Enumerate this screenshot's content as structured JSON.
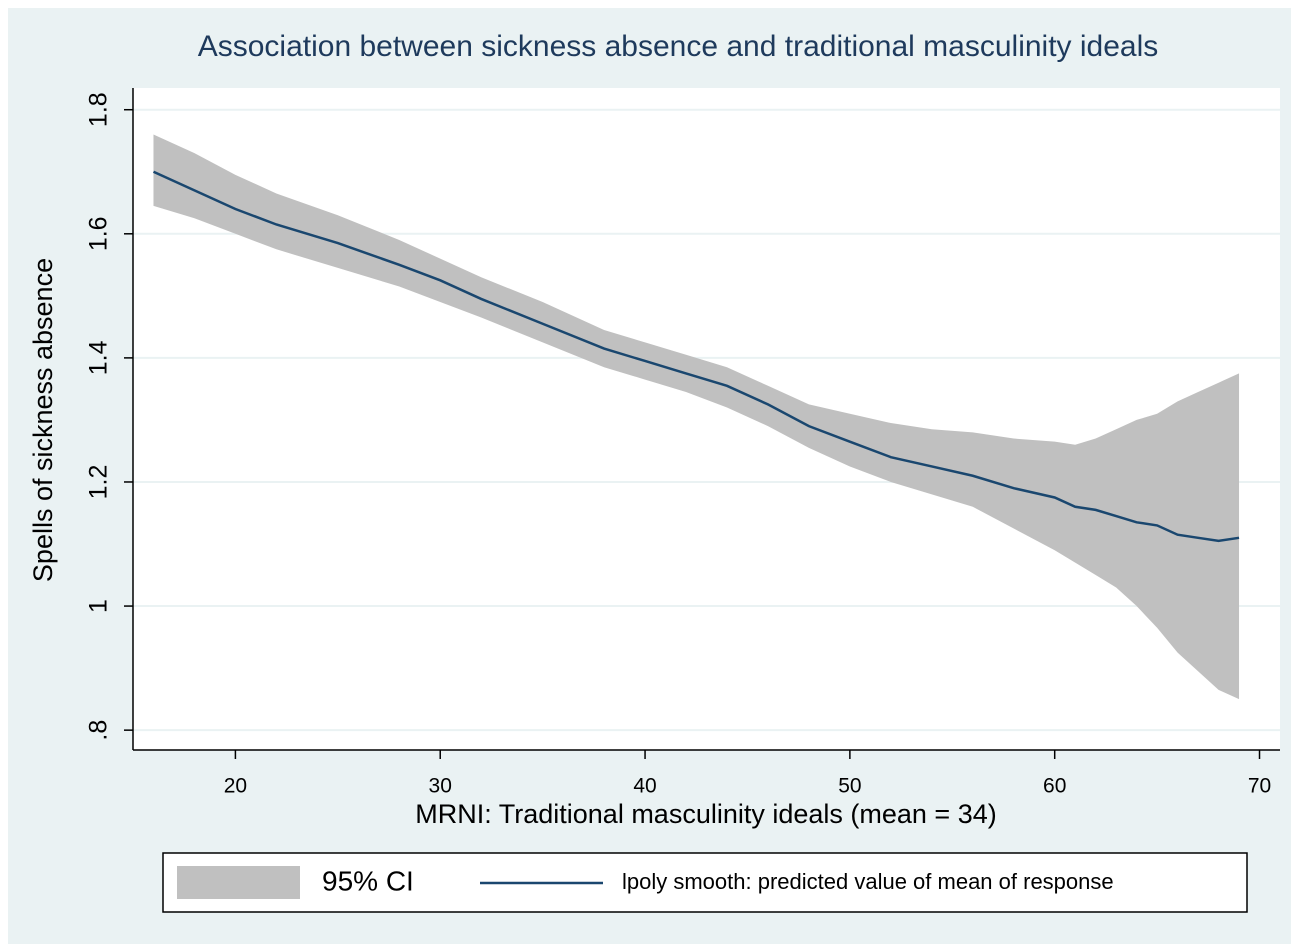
{
  "chart_data": {
    "type": "line",
    "title": "Association between sickness absence and traditional masculinity ideals",
    "x_label": "MRNI: Traditional masculinity ideals (mean = 34)",
    "y_label": "Spells of sickness absence",
    "x": [
      16,
      18,
      20,
      22,
      25,
      28,
      30,
      32,
      35,
      38,
      40,
      42,
      44,
      46,
      48,
      50,
      52,
      54,
      56,
      58,
      60,
      61,
      62,
      63,
      64,
      65,
      66,
      67,
      68,
      69
    ],
    "series": [
      {
        "name": "95% CI",
        "type": "area",
        "color": "#c0c0c0",
        "high": [
          1.76,
          1.73,
          1.695,
          1.665,
          1.63,
          1.59,
          1.56,
          1.53,
          1.49,
          1.445,
          1.425,
          1.405,
          1.385,
          1.355,
          1.325,
          1.31,
          1.295,
          1.285,
          1.28,
          1.27,
          1.265,
          1.26,
          1.27,
          1.285,
          1.3,
          1.31,
          1.33,
          1.345,
          1.36,
          1.375
        ],
        "low": [
          1.645,
          1.625,
          1.6,
          1.575,
          1.545,
          1.515,
          1.49,
          1.465,
          1.425,
          1.385,
          1.365,
          1.345,
          1.32,
          1.29,
          1.255,
          1.225,
          1.2,
          1.18,
          1.16,
          1.125,
          1.09,
          1.07,
          1.05,
          1.03,
          1.0,
          0.965,
          0.925,
          0.895,
          0.865,
          0.85
        ]
      },
      {
        "name": "lpoly smooth: predicted value of mean of response",
        "type": "line",
        "color": "#1a476f",
        "values": [
          1.7,
          1.67,
          1.64,
          1.615,
          1.585,
          1.55,
          1.525,
          1.495,
          1.455,
          1.415,
          1.395,
          1.375,
          1.355,
          1.325,
          1.29,
          1.265,
          1.24,
          1.225,
          1.21,
          1.19,
          1.175,
          1.16,
          1.155,
          1.145,
          1.135,
          1.13,
          1.115,
          1.11,
          1.105,
          1.11
        ]
      }
    ],
    "xlim": [
      15,
      71
    ],
    "ylim": [
      0.768,
      1.835
    ],
    "xticks": [
      20,
      30,
      40,
      50,
      60,
      70
    ],
    "yticks": [
      {
        "value": 0.8,
        "label": ".8"
      },
      1,
      1.2,
      1.4,
      1.6,
      1.8
    ],
    "grid": true,
    "legend": "bottom"
  }
}
